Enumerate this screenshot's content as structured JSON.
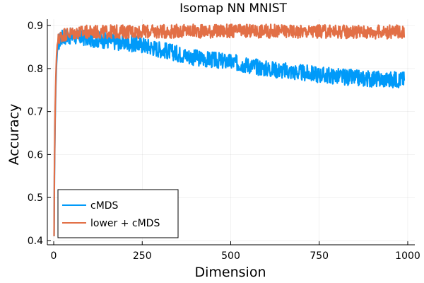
{
  "chart_data": {
    "type": "line",
    "title": "Isomap NN MNIST",
    "xlabel": "Dimension",
    "ylabel": "Accuracy",
    "xlim": [
      -18,
      1020
    ],
    "ylim": [
      0.39,
      0.915
    ],
    "xticks": [
      0,
      250,
      500,
      750,
      1000
    ],
    "xtick_labels": [
      "0",
      "250",
      "500",
      "750",
      "1000"
    ],
    "yticks": [
      0.4,
      0.5,
      0.6,
      0.7,
      0.8,
      0.9
    ],
    "ytick_labels": [
      "0.4",
      "0.5",
      "0.6",
      "0.7",
      "0.8",
      "0.9"
    ],
    "grid": true,
    "legend_position": "bottom-left",
    "series": [
      {
        "name": "cMDS",
        "color": "#009af9",
        "x": [
          1,
          2,
          4,
          6,
          8,
          10,
          14,
          20,
          30,
          50,
          75,
          100,
          150,
          200,
          250,
          300,
          350,
          400,
          450,
          500,
          550,
          600,
          650,
          700,
          750,
          800,
          850,
          900,
          950,
          990
        ],
        "y": [
          0.41,
          0.55,
          0.68,
          0.76,
          0.81,
          0.84,
          0.86,
          0.87,
          0.875,
          0.875,
          0.873,
          0.87,
          0.865,
          0.86,
          0.855,
          0.845,
          0.835,
          0.825,
          0.82,
          0.815,
          0.808,
          0.8,
          0.795,
          0.79,
          0.786,
          0.782,
          0.778,
          0.776,
          0.774,
          0.775
        ],
        "noise": 0.012
      },
      {
        "name": "lower + cMDS",
        "color": "#e26f46",
        "x": [
          1,
          2,
          4,
          6,
          8,
          10,
          14,
          20,
          30,
          50,
          75,
          100,
          150,
          200,
          250,
          300,
          350,
          400,
          450,
          500,
          550,
          600,
          650,
          700,
          750,
          800,
          850,
          900,
          950,
          990
        ],
        "y": [
          0.41,
          0.56,
          0.7,
          0.78,
          0.83,
          0.855,
          0.87,
          0.875,
          0.88,
          0.882,
          0.884,
          0.885,
          0.885,
          0.886,
          0.886,
          0.886,
          0.887,
          0.887,
          0.887,
          0.887,
          0.887,
          0.887,
          0.887,
          0.886,
          0.886,
          0.886,
          0.886,
          0.885,
          0.885,
          0.886
        ],
        "noise": 0.01
      }
    ]
  }
}
